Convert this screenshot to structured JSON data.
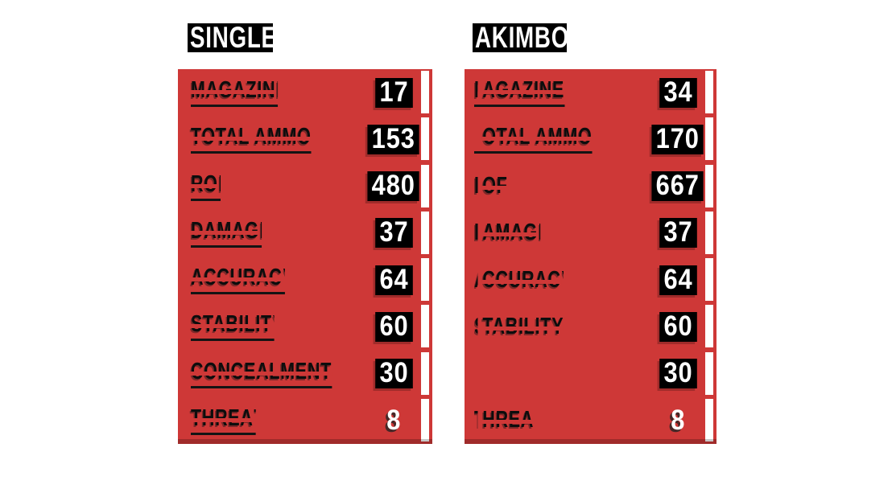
{
  "colors": {
    "panel_red": "#ce3837",
    "panel_bottom_shade": "#a62d2c",
    "highlight_black": "#000000",
    "text_white": "#ffffff",
    "label_black": "#0d0d0d",
    "page_background": "#ffffff"
  },
  "panels": [
    {
      "id": "single",
      "title": "SINGLE",
      "rows": [
        {
          "label": "MAGAZIN",
          "trail": "E",
          "value": "17",
          "boxed": true,
          "underline": true
        },
        {
          "label": "TOTAL AMMO",
          "trail": "",
          "value": "153",
          "boxed": true,
          "underline": true
        },
        {
          "label": "RO",
          "trail": "F",
          "value": "480",
          "boxed": true,
          "underline": true
        },
        {
          "label": "DAMAG",
          "trail": "E",
          "value": "37",
          "boxed": true,
          "underline": true
        },
        {
          "label": "ACCURAC",
          "trail": "Y",
          "value": "64",
          "boxed": true,
          "underline": true
        },
        {
          "label": "STABILIT",
          "trail": "Y",
          "value": "60",
          "boxed": true,
          "underline": true
        },
        {
          "label": "CONCEALMENT",
          "trail": "",
          "value": "30",
          "boxed": true,
          "underline": true
        },
        {
          "label": "THREA",
          "trail": "T",
          "value": "8",
          "boxed": false,
          "underline": true
        }
      ]
    },
    {
      "id": "akimbo",
      "title": "AKIMBO",
      "rows": [
        {
          "lead": "M",
          "label": "AGAZINE",
          "trail": "",
          "value": "34",
          "boxed": true,
          "underline": true
        },
        {
          "lead": "",
          "label": "OTAL AMMO",
          "trail": "",
          "value": "170",
          "boxed": true,
          "underline": true
        },
        {
          "lead": "R",
          "label": "OF",
          "trail": "",
          "value": "667",
          "boxed": true,
          "underline": false
        },
        {
          "lead": "D",
          "label": "AMAG",
          "trail": "E",
          "value": "37",
          "boxed": true,
          "underline": false
        },
        {
          "lead": "A",
          "label": "CCURAC",
          "trail": "Y",
          "value": "64",
          "boxed": true,
          "underline": false
        },
        {
          "lead": "S",
          "label": "TABILITY",
          "trail": "",
          "value": "60",
          "boxed": true,
          "underline": false
        },
        {
          "lead": "",
          "label": "",
          "trail": "",
          "value": "30",
          "boxed": true,
          "underline": false
        },
        {
          "lead": "T",
          "label": "HREA",
          "trail": "",
          "value": "8",
          "boxed": false,
          "underline": false
        }
      ]
    }
  ]
}
